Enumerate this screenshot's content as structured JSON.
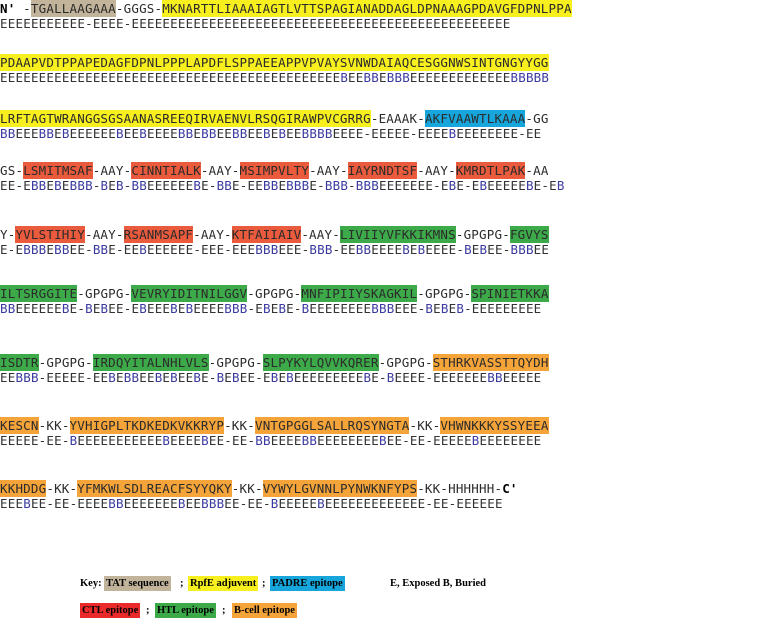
{
  "n_terminus": "N'",
  "c_terminus": "C'",
  "rows": [
    {
      "segments": [
        [
          "n",
          "N'"
        ],
        [
          "s",
          " -"
        ],
        [
          "t",
          "TGALLAAGAAA"
        ],
        [
          "s",
          "-GGGS-"
        ],
        [
          "r",
          "MKNARTTLIAAAIAGTLVTTSPAGIANADDAGLDPNAAAGPDAVGFDPNLPPA"
        ]
      ],
      "acc": "EEEEEEEEEEE-EEEE-EEEEEEEEEEEEEEEEEEEEEEEEEEEEEEEEEEEEEEEEEEEEEEEEE"
    },
    {
      "segments": [
        [
          "r",
          "PDAAPVDTPPAPEDAGFDPNLPPPLAPDFLSPPAEEAPPVPVAYSVNWDAIAQCESGGNWSINTGNGYYGG"
        ]
      ],
      "acc": "EEEEEEEEEEEEEEEEEEEEEEEEEEEEEEEEEEEEEEEEEEEEBEEBBEBBBEEEEEEEEEEEEEBBBBB"
    },
    {
      "segments": [
        [
          "r",
          "LRFTAGTWRANGGSGSAANASREEQIRVAENVLRSQGIRAWPVCGRRG"
        ],
        [
          "s",
          "-EAAAK-"
        ],
        [
          "p",
          "AKFVAAWTLKAAA"
        ],
        [
          "s",
          "-GG"
        ]
      ],
      "acc": "BBEEEBBEBEEEEEEBEEBEEEEBBEBBEEBBEEBEBEEBBBBEEEE-EEEEE-EEEEBEEEEEEEE-EE"
    },
    {
      "segments": [
        [
          "s",
          "GS-"
        ],
        [
          "c",
          "LSMITMSAF"
        ],
        [
          "s",
          "-AAY-"
        ],
        [
          "c",
          "CINNTIALK"
        ],
        [
          "s",
          "-AAY-"
        ],
        [
          "c",
          "MSIMPVLTY"
        ],
        [
          "s",
          "-AAY-"
        ],
        [
          "c",
          "IAYRNDTSF"
        ],
        [
          "s",
          "-AAY-"
        ],
        [
          "c",
          "KMRDTLPAK"
        ],
        [
          "s",
          "-AA"
        ]
      ],
      "acc": "EE-EBBEBEBBB-BEB-BBEEEEEEBE-BBE-EEBBEBBBE-BBB-BBBEEEEEEE-EBE-EBEEEEEBE-EB"
    },
    {
      "segments": [
        [
          "s",
          "Y-"
        ],
        [
          "c",
          "YVLSTIHIY"
        ],
        [
          "s",
          "-AAY-"
        ],
        [
          "c",
          "RSANMSAPF"
        ],
        [
          "s",
          "-AAY-"
        ],
        [
          "c",
          "KTFAIIAIV"
        ],
        [
          "s",
          "-AAY-"
        ],
        [
          "h",
          "LIVIIYVFKKIKMNS"
        ],
        [
          "s",
          "-GPGPG-"
        ],
        [
          "h",
          "FGVYS"
        ]
      ],
      "acc": "E-EBBBEBBEE-BBE-EEBEEEEEE-EEE-EEEBBBEEE-BBB-EEBBEEEEBEBEEEE-BEBEE-BBBEE"
    },
    {
      "segments": [
        [
          "h",
          "ILTSRGGITE"
        ],
        [
          "s",
          "-GPGPG-"
        ],
        [
          "h",
          "VEVRYIDITNILGGV"
        ],
        [
          "s",
          "-GPGPG-"
        ],
        [
          "h",
          "MNFIPIIYSKAGKIL"
        ],
        [
          "s",
          "-GPGPG-"
        ],
        [
          "h",
          "SPINIETKKA"
        ]
      ],
      "acc": "BBEEEEEEBE-BEBEE-EBEEEBEBEEEEBBB-EBEBE-BEEEEEEEEBBBEEE-BEBEB-EEEEEEEEE"
    },
    {
      "segments": [
        [
          "h",
          "ISDTR"
        ],
        [
          "s",
          "-GPGPG-"
        ],
        [
          "h",
          "IRDQYITALNHLVLS"
        ],
        [
          "s",
          "-GPGPG-"
        ],
        [
          "h",
          "SLPYKYLQVVKQRER"
        ],
        [
          "s",
          "-GPGPG-"
        ],
        [
          "o",
          "STHRKVASSTTQYDH"
        ]
      ],
      "acc": "EEBBB-EEEEE-EEBEBBEEBEBEEBE-BEBEE-EBEBEEEEEEEEEBE-BEEEE-EEEEEEEBBEEEEE"
    },
    {
      "segments": [
        [
          "o",
          "KESCN"
        ],
        [
          "s",
          "-KK-"
        ],
        [
          "o",
          "YVHIGPLTKDKEDKVKKRYP"
        ],
        [
          "s",
          "-KK-"
        ],
        [
          "o",
          "VNTGPGGLSALLRQSYNGTA"
        ],
        [
          "s",
          "-KK-"
        ],
        [
          "o",
          "VHWNKKKYSSYEEA"
        ]
      ],
      "acc": "EEEEE-EE-BEEEEEEEEEEEBEEEEBEE-EE-BBEEEEBBEEEEEEEEBEE-EE-EEEEEBEEEEEEEE"
    },
    {
      "segments": [
        [
          "o",
          "KKHDDG"
        ],
        [
          "s",
          "-KK-"
        ],
        [
          "o",
          "YFMKWLSDLREACFSYYQKY"
        ],
        [
          "s",
          "-KK-"
        ],
        [
          "o",
          "VYWYLGVNNLPYNWKNFYPS"
        ],
        [
          "s",
          "-KK-HHHHHH-"
        ],
        [
          "n",
          "C'"
        ]
      ],
      "acc": "EEEBEE-EE-EEEEBBEEEEEEEBEEBBBEE-EE-BEEEEEBEEEEEEEEEEEEE-EE-EEEEEE"
    }
  ],
  "legend": {
    "key_label": "Key:",
    "items": [
      {
        "label": "TAT sequence",
        "color": "#c2b49b"
      },
      {
        "label": "RpfE adjuvent",
        "color": "#f7ef1e"
      },
      {
        "label": "PADRE epitope",
        "color": "#16a6dc"
      },
      {
        "label": "CTL epitope",
        "color": "#ea2a2a"
      },
      {
        "label": "HTL epitope",
        "color": "#3daa4a"
      },
      {
        "label": "B-cell epitope",
        "color": "#f5a43a"
      }
    ],
    "exposure_note": "E, Exposed  B, Buried",
    "separator": ";"
  }
}
